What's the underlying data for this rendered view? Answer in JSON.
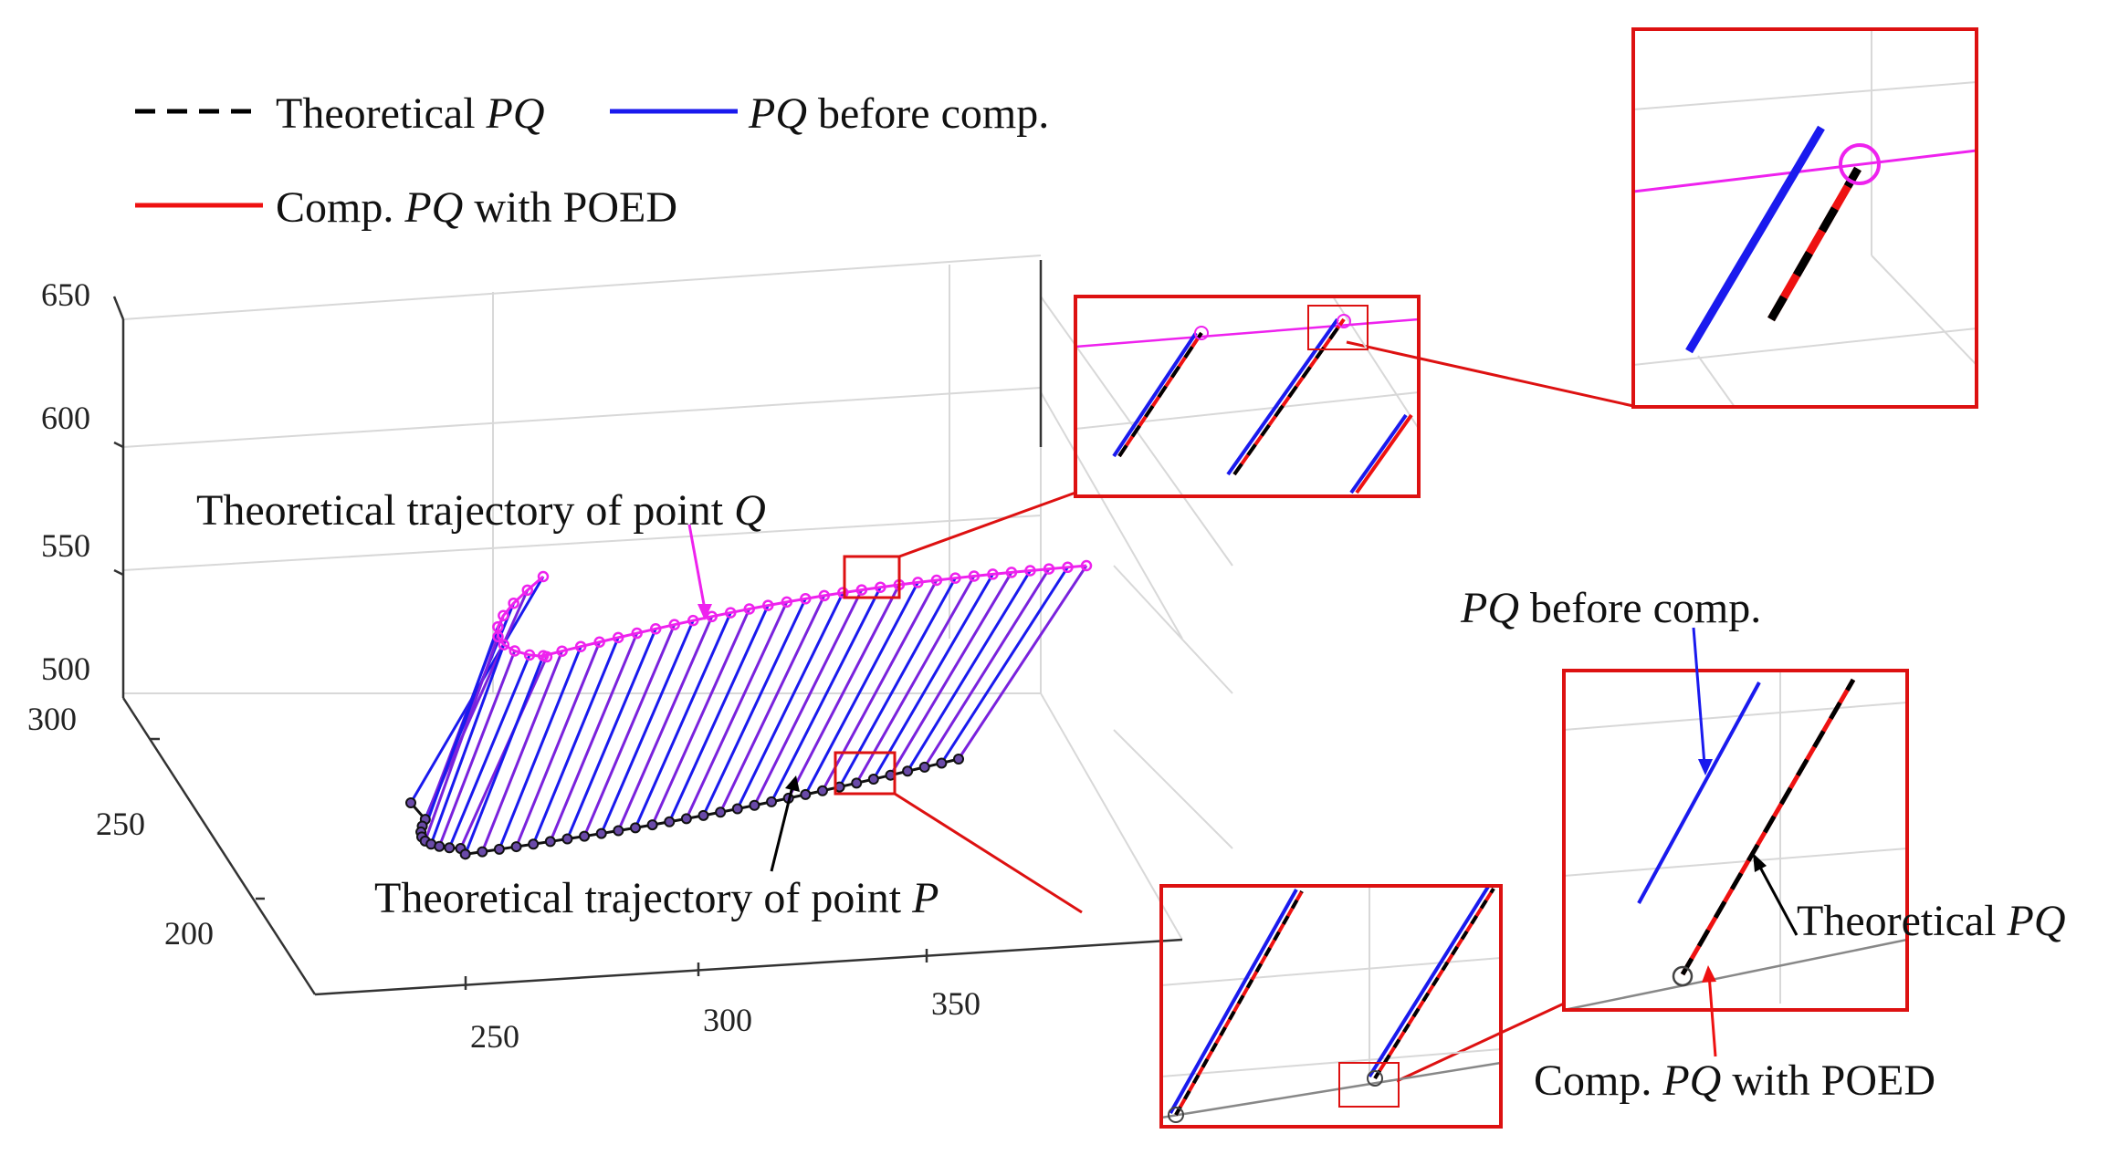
{
  "chart_data": {
    "type": "line3d",
    "title": "",
    "legend": {
      "placement": "top-left",
      "entries": [
        {
          "label_pre": "Theoretical ",
          "label_it": "PQ",
          "label_post": "",
          "style": "dashed",
          "color": "#000000"
        },
        {
          "label_pre": "",
          "label_it": "PQ",
          "label_post": " before comp.",
          "style": "solid",
          "color": "#1a1aee"
        },
        {
          "label_pre": "Comp. ",
          "label_it": "PQ",
          "label_post": " with POED",
          "style": "solid",
          "color": "#ee1111"
        }
      ]
    },
    "axes": {
      "x": {
        "ticks": [
          "250",
          "300",
          "350"
        ],
        "range": [
          225,
          400
        ]
      },
      "y": {
        "ticks": [
          "300",
          "250",
          "200"
        ],
        "range": [
          160,
          300
        ]
      },
      "z": {
        "ticks": [
          "650",
          "600",
          "550",
          "500"
        ],
        "range": [
          500,
          650
        ]
      }
    },
    "grid": true,
    "annotations": {
      "traj_q": {
        "pre": "Theoretical trajectory of point ",
        "it": "Q"
      },
      "traj_p": {
        "pre": "Theoretical trajectory of point ",
        "it": "P"
      },
      "before": {
        "it": "PQ",
        "post": " before comp."
      },
      "theoretical": {
        "pre": "Theoretical ",
        "it": "PQ"
      },
      "comp": {
        "pre": "Comp. ",
        "it": "PQ",
        "post": " with POED"
      }
    },
    "series": [
      {
        "name": "Theoretical trajectory of point Q",
        "color": "#ee22ee"
      },
      {
        "name": "Theoretical trajectory of point P",
        "color": "#111111"
      },
      {
        "name": "PQ before comp.",
        "color": "#1a1aee"
      },
      {
        "name": "Comp. PQ with POED",
        "color": "#ee1111"
      }
    ],
    "colors": {
      "q": "#ee22ee",
      "p": "#111111",
      "blue": "#1a1aee",
      "red": "#ee1111",
      "frame": "#dd1111",
      "grid": "#d8d8d8"
    }
  }
}
